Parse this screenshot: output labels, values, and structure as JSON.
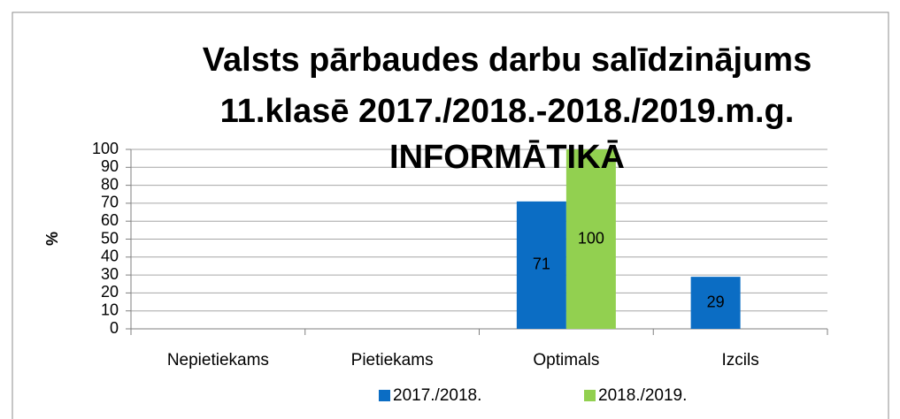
{
  "chart_data": {
    "type": "bar",
    "title": [
      "Valsts pārbaudes darbu salīdzinājums",
      "11.klasē 2017./2018.-2018./2019.m.g.",
      "INFORMĀTIKĀ"
    ],
    "y_label": "%",
    "categories": [
      "Nepietiekams",
      "Pietiekams",
      "Optimals",
      "Izcils"
    ],
    "series": [
      {
        "name": "2017./2018.",
        "color": "#0b6dc4",
        "values": [
          null,
          null,
          71,
          29
        ]
      },
      {
        "name": "2018./2019.",
        "color": "#92d050",
        "values": [
          null,
          null,
          100,
          null
        ]
      }
    ],
    "ylim": [
      0,
      100
    ],
    "yticks": [
      0,
      10,
      20,
      30,
      40,
      50,
      60,
      70,
      80,
      90,
      100
    ],
    "grid": true,
    "legend": "bottom",
    "data_labels": true
  }
}
